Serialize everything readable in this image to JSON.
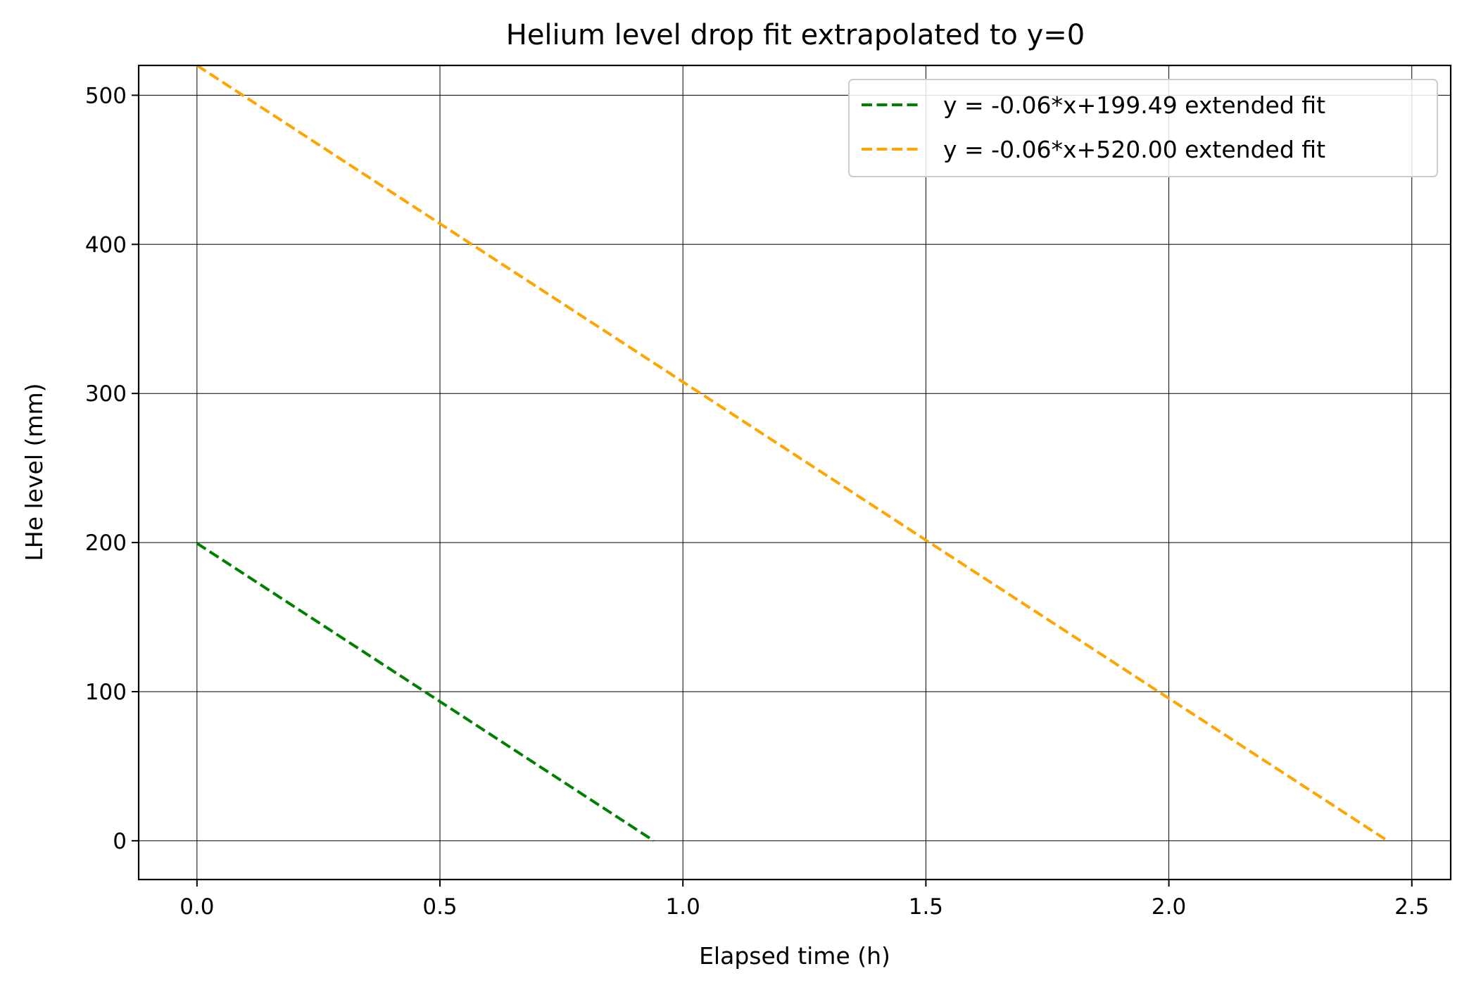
{
  "chart_data": {
    "type": "line",
    "title": "Helium level drop fit extrapolated to y=0",
    "xlabel": "Elapsed time (h)",
    "ylabel": "LHe level (mm)",
    "xlim": [
      -0.12,
      2.58
    ],
    "ylim": [
      -26,
      520
    ],
    "x_ticks": [
      0.0,
      0.5,
      1.0,
      1.5,
      2.0,
      2.5
    ],
    "x_tick_labels": [
      "0.0",
      "0.5",
      "1.0",
      "1.5",
      "2.0",
      "2.5"
    ],
    "y_ticks": [
      0,
      100,
      200,
      300,
      400,
      500
    ],
    "y_tick_labels": [
      "0",
      "100",
      "200",
      "300",
      "400",
      "500"
    ],
    "grid": true,
    "legend_position": "top-right",
    "series": [
      {
        "name": "y = -0.06*x+199.49 extended fit",
        "color": "#008000",
        "line_style": "dashed",
        "x": [
          0.0,
          0.94
        ],
        "y": [
          199.49,
          0
        ]
      },
      {
        "name": "y = -0.06*x+520.00 extended fit",
        "color": "#FFA500",
        "line_style": "dashed",
        "x": [
          0.0,
          2.45
        ],
        "y": [
          520.0,
          0
        ]
      }
    ]
  }
}
